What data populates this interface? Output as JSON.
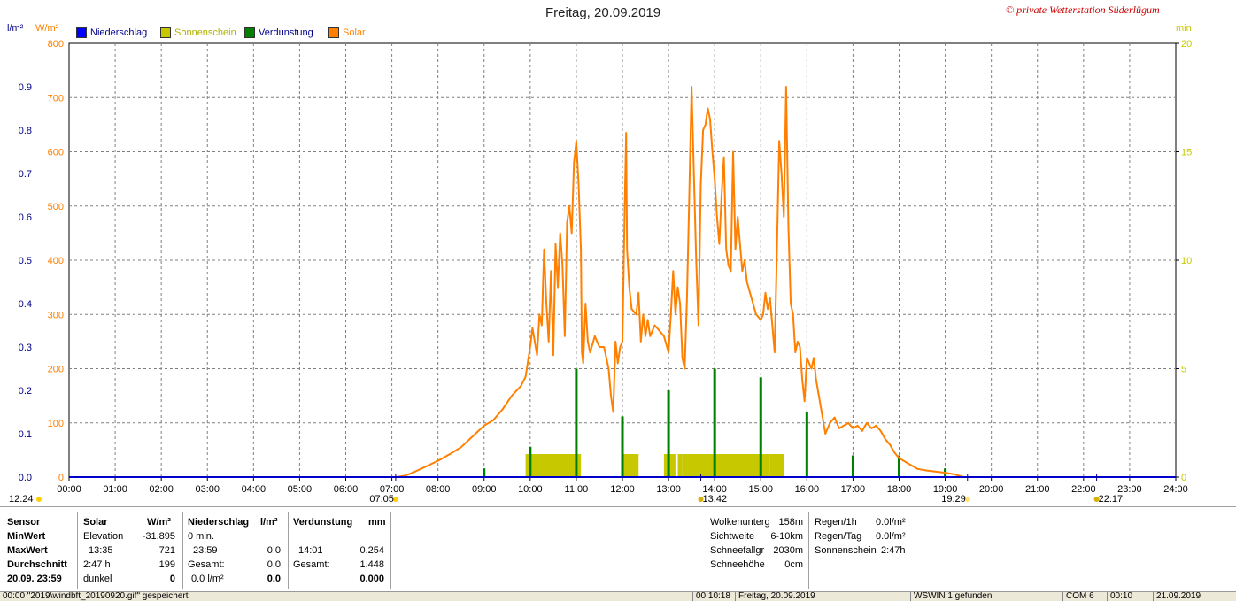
{
  "title": "Freitag, 20.09.2019",
  "copyright": "© private Wetterstation Süderlügum",
  "axis_units": {
    "left_rain": "l/m²",
    "left_solar": "W/m²",
    "right_sun": "min"
  },
  "legend": [
    {
      "label": "Niederschlag",
      "color": "#0000ff"
    },
    {
      "label": "Sonnenschein",
      "color": "#c8c800"
    },
    {
      "label": "Verdunstung",
      "color": "#008000"
    },
    {
      "label": "Solar",
      "color": "#ff8000"
    }
  ],
  "markers": {
    "moonrise_left": "12:24",
    "sunrise": "07:05",
    "solar_noon": "13:42",
    "sunset": "19:29",
    "moonset": "22:17"
  },
  "chart_data": {
    "type": "line",
    "title": "Freitag, 20.09.2019",
    "x_range_hours": [
      0,
      24
    ],
    "x_ticks": [
      "00:00",
      "01:00",
      "02:00",
      "03:00",
      "04:00",
      "05:00",
      "06:00",
      "07:00",
      "08:00",
      "09:00",
      "10:00",
      "11:00",
      "12:00",
      "13:00",
      "14:00",
      "15:00",
      "16:00",
      "17:00",
      "18:00",
      "19:00",
      "20:00",
      "21:00",
      "22:00",
      "23:00",
      "24:00"
    ],
    "axes": {
      "solar": {
        "label": "W/m²",
        "range": [
          0,
          800
        ],
        "ticks": [
          "0",
          "100",
          "200",
          "300",
          "400",
          "500",
          "600",
          "700",
          "800"
        ],
        "color": "#ff8000"
      },
      "rain": {
        "label": "l/m²",
        "range": [
          0,
          1.0
        ],
        "ticks": [
          "0.0",
          "0.1",
          "0.2",
          "0.3",
          "0.4",
          "0.5",
          "0.6",
          "0.7",
          "0.8",
          "0.9"
        ],
        "color": "#00008b"
      },
      "sunshine": {
        "label": "min",
        "range": [
          0,
          20
        ],
        "ticks": [
          "0",
          "5",
          "10",
          "15",
          "20"
        ],
        "color": "#c8c800"
      }
    },
    "grid": true,
    "legend_position": "top-left",
    "series": [
      {
        "name": "Solar",
        "axis": "solar",
        "color": "#ff8000",
        "points": [
          [
            7.1,
            0
          ],
          [
            7.3,
            3
          ],
          [
            7.5,
            10
          ],
          [
            7.75,
            20
          ],
          [
            8.0,
            30
          ],
          [
            8.25,
            42
          ],
          [
            8.5,
            55
          ],
          [
            8.75,
            75
          ],
          [
            9.0,
            95
          ],
          [
            9.2,
            105
          ],
          [
            9.4,
            125
          ],
          [
            9.6,
            150
          ],
          [
            9.8,
            168
          ],
          [
            9.9,
            185
          ],
          [
            10.0,
            240
          ],
          [
            10.05,
            275
          ],
          [
            10.1,
            250
          ],
          [
            10.15,
            225
          ],
          [
            10.2,
            300
          ],
          [
            10.25,
            280
          ],
          [
            10.3,
            420
          ],
          [
            10.35,
            320
          ],
          [
            10.4,
            250
          ],
          [
            10.45,
            380
          ],
          [
            10.5,
            225
          ],
          [
            10.55,
            430
          ],
          [
            10.6,
            350
          ],
          [
            10.65,
            450
          ],
          [
            10.7,
            390
          ],
          [
            10.75,
            260
          ],
          [
            10.8,
            470
          ],
          [
            10.85,
            500
          ],
          [
            10.9,
            450
          ],
          [
            10.95,
            580
          ],
          [
            11.0,
            620
          ],
          [
            11.05,
            540
          ],
          [
            11.1,
            420
          ],
          [
            11.12,
            230
          ],
          [
            11.15,
            210
          ],
          [
            11.2,
            320
          ],
          [
            11.25,
            250
          ],
          [
            11.3,
            230
          ],
          [
            11.4,
            260
          ],
          [
            11.5,
            240
          ],
          [
            11.6,
            240
          ],
          [
            11.7,
            200
          ],
          [
            11.75,
            150
          ],
          [
            11.8,
            120
          ],
          [
            11.85,
            250
          ],
          [
            11.9,
            210
          ],
          [
            11.95,
            240
          ],
          [
            12.0,
            250
          ],
          [
            12.05,
            500
          ],
          [
            12.08,
            635
          ],
          [
            12.1,
            420
          ],
          [
            12.15,
            350
          ],
          [
            12.2,
            310
          ],
          [
            12.3,
            300
          ],
          [
            12.35,
            340
          ],
          [
            12.4,
            250
          ],
          [
            12.45,
            300
          ],
          [
            12.5,
            260
          ],
          [
            12.55,
            290
          ],
          [
            12.6,
            260
          ],
          [
            12.7,
            280
          ],
          [
            12.8,
            270
          ],
          [
            12.9,
            260
          ],
          [
            13.0,
            230
          ],
          [
            13.05,
            300
          ],
          [
            13.1,
            380
          ],
          [
            13.15,
            300
          ],
          [
            13.2,
            350
          ],
          [
            13.25,
            320
          ],
          [
            13.3,
            220
          ],
          [
            13.35,
            200
          ],
          [
            13.4,
            330
          ],
          [
            13.45,
            520
          ],
          [
            13.5,
            720
          ],
          [
            13.55,
            560
          ],
          [
            13.6,
            400
          ],
          [
            13.65,
            280
          ],
          [
            13.7,
            540
          ],
          [
            13.75,
            640
          ],
          [
            13.8,
            650
          ],
          [
            13.85,
            680
          ],
          [
            13.9,
            660
          ],
          [
            13.95,
            600
          ],
          [
            14.0,
            550
          ],
          [
            14.05,
            480
          ],
          [
            14.1,
            430
          ],
          [
            14.15,
            520
          ],
          [
            14.2,
            590
          ],
          [
            14.25,
            420
          ],
          [
            14.3,
            390
          ],
          [
            14.35,
            380
          ],
          [
            14.4,
            600
          ],
          [
            14.45,
            420
          ],
          [
            14.5,
            480
          ],
          [
            14.55,
            430
          ],
          [
            14.6,
            380
          ],
          [
            14.65,
            400
          ],
          [
            14.7,
            360
          ],
          [
            14.8,
            330
          ],
          [
            14.9,
            300
          ],
          [
            15.0,
            290
          ],
          [
            15.05,
            300
          ],
          [
            15.1,
            340
          ],
          [
            15.15,
            310
          ],
          [
            15.2,
            330
          ],
          [
            15.25,
            280
          ],
          [
            15.3,
            230
          ],
          [
            15.35,
            420
          ],
          [
            15.4,
            620
          ],
          [
            15.45,
            560
          ],
          [
            15.5,
            480
          ],
          [
            15.55,
            720
          ],
          [
            15.6,
            460
          ],
          [
            15.65,
            320
          ],
          [
            15.7,
            300
          ],
          [
            15.75,
            230
          ],
          [
            15.8,
            250
          ],
          [
            15.85,
            240
          ],
          [
            15.9,
            180
          ],
          [
            15.95,
            140
          ],
          [
            16.0,
            220
          ],
          [
            16.05,
            210
          ],
          [
            16.1,
            200
          ],
          [
            16.15,
            220
          ],
          [
            16.2,
            180
          ],
          [
            16.3,
            130
          ],
          [
            16.4,
            80
          ],
          [
            16.5,
            100
          ],
          [
            16.6,
            110
          ],
          [
            16.7,
            90
          ],
          [
            16.8,
            95
          ],
          [
            16.9,
            100
          ],
          [
            17.0,
            90
          ],
          [
            17.1,
            95
          ],
          [
            17.2,
            85
          ],
          [
            17.3,
            100
          ],
          [
            17.4,
            90
          ],
          [
            17.5,
            95
          ],
          [
            17.6,
            85
          ],
          [
            17.7,
            70
          ],
          [
            17.8,
            60
          ],
          [
            17.9,
            45
          ],
          [
            18.0,
            35
          ],
          [
            18.2,
            25
          ],
          [
            18.4,
            15
          ],
          [
            18.6,
            12
          ],
          [
            18.8,
            10
          ],
          [
            19.0,
            8
          ],
          [
            19.2,
            5
          ],
          [
            19.4,
            0
          ]
        ]
      },
      {
        "name": "Verdunstung",
        "axis": "rain",
        "color": "#008000",
        "bars": [
          [
            9.0,
            0.02
          ],
          [
            10.0,
            0.07
          ],
          [
            11.0,
            0.25
          ],
          [
            12.0,
            0.14
          ],
          [
            13.0,
            0.2
          ],
          [
            14.0,
            0.25
          ],
          [
            15.0,
            0.23
          ],
          [
            16.0,
            0.15
          ],
          [
            17.0,
            0.05
          ],
          [
            18.0,
            0.05
          ],
          [
            19.0,
            0.02
          ]
        ]
      },
      {
        "name": "Sonnenschein",
        "axis": "sunshine",
        "color": "#c8c800",
        "blocks": [
          [
            9.9,
            11.1,
            1
          ],
          [
            12.0,
            12.35,
            1
          ],
          [
            12.9,
            13.15,
            1
          ],
          [
            13.2,
            13.3,
            1
          ],
          [
            13.3,
            15.2,
            1
          ],
          [
            15.2,
            15.5,
            1
          ]
        ]
      },
      {
        "name": "Niederschlag",
        "axis": "rain",
        "color": "#0000ff",
        "bars": []
      }
    ]
  },
  "stats": {
    "headers": {
      "sensor": "Sensor",
      "solar": "Solar",
      "solar_unit": "W/m²",
      "rain": "Niederschlag",
      "rain_unit": "l/m²",
      "evap": "Verdunstung",
      "evap_unit": "mm"
    },
    "row_labels": [
      "MinWert",
      "MaxWert",
      "Durchschnitt",
      "20.09. 23:59"
    ],
    "solar": [
      [
        "Elevation",
        "-31.895"
      ],
      [
        "13:35",
        "721"
      ],
      [
        "2:47 h",
        "199"
      ],
      [
        "dunkel",
        "0"
      ]
    ],
    "rain": [
      [
        "0 min.",
        ""
      ],
      [
        "23:59",
        "0.0"
      ],
      [
        "Gesamt:",
        "0.0"
      ],
      [
        "0.0 l/m²",
        "0.0"
      ]
    ],
    "evap": [
      [
        "",
        ""
      ],
      [
        "14:01",
        "0.254"
      ],
      [
        "Gesamt:",
        "1.448"
      ],
      [
        "",
        "0.000"
      ]
    ],
    "cloud": [
      [
        "Wolkenunterg",
        "158m"
      ],
      [
        "Sichtweite",
        "6-10km"
      ],
      [
        "Schneefallgr",
        "2030m"
      ],
      [
        "Schneehöhe",
        "0cm"
      ]
    ],
    "rainrate": [
      [
        "Regen/1h",
        "0.0l/m²"
      ],
      [
        "Regen/Tag",
        "0.0l/m²"
      ],
      [
        "Sonnenschein",
        "2:47h"
      ]
    ]
  },
  "statusbar": [
    "00:00  \"2019\\windbft_20190920.gif\"  gespeichert",
    "00:10:18",
    "Freitag, 20.09.2019",
    "WSWIN 1 gefunden",
    "COM 6",
    "00:10",
    "21.09.2019"
  ]
}
